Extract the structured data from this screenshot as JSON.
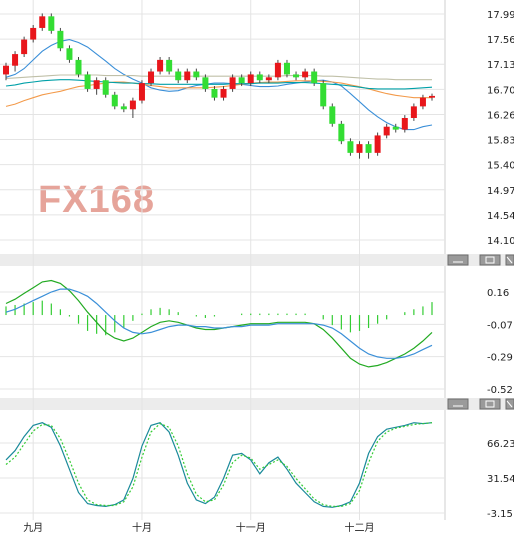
{
  "chart_data": [
    {
      "type": "candlestick",
      "panel": "price",
      "y_ticks": [
        "17.99",
        "17.56",
        "17.13",
        "16.70",
        "16.26",
        "15.83",
        "15.40",
        "14.97",
        "14.54",
        "14.10"
      ],
      "ylim": [
        14.1,
        17.99
      ],
      "up_color": "#e8161b",
      "down_color": "#33dd33",
      "series": [
        {
          "color": "#3a8fd8",
          "values": [
            16.9,
            16.95,
            17.05,
            17.2,
            17.35,
            17.45,
            17.52,
            17.55,
            17.5,
            17.42,
            17.3,
            17.18,
            17.05,
            16.95,
            16.87,
            16.8,
            16.72,
            16.68,
            16.66,
            16.67,
            16.72,
            16.76,
            16.78,
            16.8,
            16.8,
            16.79,
            16.78,
            16.76,
            16.74,
            16.74,
            16.75,
            16.78,
            16.8,
            16.82,
            16.84,
            16.85,
            16.82,
            16.75,
            16.62,
            16.48,
            16.34,
            16.22,
            16.12,
            16.05,
            16.0,
            16.0,
            16.05,
            16.08
          ]
        },
        {
          "color": "#f39a4a",
          "values": [
            16.4,
            16.44,
            16.5,
            16.55,
            16.6,
            16.63,
            16.66,
            16.7,
            16.74,
            16.76,
            16.78,
            16.8,
            16.82,
            16.82,
            16.8,
            16.78,
            16.76,
            16.74,
            16.72,
            16.72,
            16.72,
            16.72,
            16.72,
            16.73,
            16.74,
            16.76,
            16.78,
            16.8,
            16.81,
            16.82,
            16.82,
            16.83,
            16.84,
            16.84,
            16.84,
            16.83,
            16.82,
            16.8,
            16.77,
            16.74,
            16.7,
            16.66,
            16.62,
            16.59,
            16.57,
            16.55,
            16.55,
            16.55
          ]
        },
        {
          "color": "#00a0a8",
          "values": [
            16.75,
            16.77,
            16.8,
            16.82,
            16.84,
            16.85,
            16.86,
            16.86,
            16.85,
            16.84,
            16.83,
            16.82,
            16.81,
            16.8,
            16.8,
            16.79,
            16.79,
            16.78,
            16.78,
            16.78,
            16.78,
            16.78,
            16.78,
            16.78,
            16.78,
            16.79,
            16.79,
            16.79,
            16.8,
            16.8,
            16.8,
            16.81,
            16.81,
            16.81,
            16.8,
            16.79,
            16.78,
            16.77,
            16.75,
            16.73,
            16.71,
            16.7,
            16.7,
            16.7,
            16.7,
            16.71,
            16.72,
            16.73
          ]
        },
        {
          "color": "#c0c0a8",
          "values": [
            16.88,
            16.89,
            16.9,
            16.91,
            16.92,
            16.93,
            16.94,
            16.94,
            16.94,
            16.94,
            16.94,
            16.93,
            16.93,
            16.93,
            16.93,
            16.92,
            16.92,
            16.92,
            16.92,
            16.92,
            16.92,
            16.92,
            16.92,
            16.92,
            16.92,
            16.92,
            16.92,
            16.92,
            16.92,
            16.92,
            16.92,
            16.93,
            16.93,
            16.93,
            16.93,
            16.92,
            16.92,
            16.91,
            16.9,
            16.89,
            16.88,
            16.87,
            16.87,
            16.86,
            16.86,
            16.86,
            16.86,
            16.86
          ]
        }
      ],
      "candles": [
        [
          16.95,
          17.1,
          16.85,
          17.15
        ],
        [
          17.1,
          17.3,
          17.0,
          17.35
        ],
        [
          17.3,
          17.55,
          17.25,
          17.6
        ],
        [
          17.55,
          17.75,
          17.5,
          17.8
        ],
        [
          17.75,
          17.95,
          17.7,
          18.0
        ],
        [
          17.95,
          17.7,
          17.65,
          18.0
        ],
        [
          17.7,
          17.4,
          17.35,
          17.75
        ],
        [
          17.4,
          17.2,
          17.15,
          17.45
        ],
        [
          17.2,
          16.95,
          16.9,
          17.25
        ],
        [
          16.95,
          16.7,
          16.65,
          17.0
        ],
        [
          16.7,
          16.85,
          16.6,
          16.9
        ],
        [
          16.85,
          16.6,
          16.55,
          16.9
        ],
        [
          16.6,
          16.4,
          16.35,
          16.65
        ],
        [
          16.4,
          16.35,
          16.3,
          16.45
        ],
        [
          16.35,
          16.5,
          16.2,
          16.55
        ],
        [
          16.5,
          16.8,
          16.45,
          16.85
        ],
        [
          16.8,
          17.0,
          16.75,
          17.05
        ],
        [
          17.0,
          17.2,
          16.95,
          17.25
        ],
        [
          17.2,
          17.0,
          16.95,
          17.25
        ],
        [
          17.0,
          16.85,
          16.8,
          17.05
        ],
        [
          16.85,
          17.0,
          16.8,
          17.05
        ],
        [
          17.0,
          16.9,
          16.85,
          17.05
        ],
        [
          16.9,
          16.7,
          16.65,
          16.95
        ],
        [
          16.7,
          16.55,
          16.5,
          16.75
        ],
        [
          16.55,
          16.7,
          16.5,
          16.75
        ],
        [
          16.7,
          16.9,
          16.65,
          16.95
        ],
        [
          16.9,
          16.8,
          16.75,
          16.95
        ],
        [
          16.8,
          16.95,
          16.75,
          17.0
        ],
        [
          16.95,
          16.85,
          16.8,
          17.0
        ],
        [
          16.85,
          16.9,
          16.8,
          16.95
        ],
        [
          16.9,
          17.15,
          16.85,
          17.2
        ],
        [
          17.15,
          16.95,
          16.9,
          17.2
        ],
        [
          16.95,
          16.9,
          16.85,
          17.0
        ],
        [
          16.9,
          17.0,
          16.85,
          17.05
        ],
        [
          17.0,
          16.8,
          16.75,
          17.05
        ],
        [
          16.8,
          16.4,
          16.35,
          16.85
        ],
        [
          16.4,
          16.1,
          16.05,
          16.45
        ],
        [
          16.1,
          15.8,
          15.75,
          16.15
        ],
        [
          15.8,
          15.6,
          15.55,
          15.85
        ],
        [
          15.6,
          15.75,
          15.5,
          15.8
        ],
        [
          15.75,
          15.6,
          15.5,
          15.8
        ],
        [
          15.6,
          15.9,
          15.55,
          15.95
        ],
        [
          15.9,
          16.05,
          15.85,
          16.1
        ],
        [
          16.05,
          16.0,
          15.95,
          16.1
        ],
        [
          16.0,
          16.2,
          15.95,
          16.25
        ],
        [
          16.2,
          16.4,
          16.15,
          16.45
        ],
        [
          16.4,
          16.55,
          16.35,
          16.6
        ],
        [
          16.55,
          16.58,
          16.5,
          16.62
        ]
      ]
    },
    {
      "type": "line",
      "panel": "macd",
      "y_ticks": [
        "0.16",
        "-0.07",
        "-0.29",
        "-0.52"
      ],
      "ylim": [
        -0.52,
        0.16
      ],
      "bar_color": "#33cc33",
      "series": [
        {
          "color": "#22aa22",
          "values": [
            0.08,
            0.11,
            0.15,
            0.19,
            0.23,
            0.24,
            0.22,
            0.17,
            0.1,
            0.02,
            -0.05,
            -0.12,
            -0.16,
            -0.18,
            -0.16,
            -0.12,
            -0.08,
            -0.05,
            -0.04,
            -0.05,
            -0.07,
            -0.09,
            -0.1,
            -0.1,
            -0.09,
            -0.08,
            -0.07,
            -0.06,
            -0.06,
            -0.06,
            -0.05,
            -0.05,
            -0.05,
            -0.05,
            -0.06,
            -0.1,
            -0.16,
            -0.23,
            -0.3,
            -0.34,
            -0.36,
            -0.35,
            -0.33,
            -0.3,
            -0.27,
            -0.23,
            -0.18,
            -0.12
          ]
        },
        {
          "color": "#3a8fd8",
          "values": [
            0.02,
            0.04,
            0.07,
            0.1,
            0.13,
            0.16,
            0.18,
            0.18,
            0.16,
            0.13,
            0.08,
            0.02,
            -0.04,
            -0.09,
            -0.12,
            -0.13,
            -0.12,
            -0.1,
            -0.08,
            -0.07,
            -0.07,
            -0.08,
            -0.08,
            -0.09,
            -0.09,
            -0.08,
            -0.08,
            -0.07,
            -0.07,
            -0.07,
            -0.06,
            -0.06,
            -0.06,
            -0.06,
            -0.06,
            -0.07,
            -0.09,
            -0.13,
            -0.18,
            -0.23,
            -0.27,
            -0.29,
            -0.3,
            -0.3,
            -0.29,
            -0.27,
            -0.24,
            -0.21
          ]
        }
      ],
      "histogram": [
        0.06,
        0.07,
        0.08,
        0.09,
        0.1,
        0.08,
        0.04,
        -0.01,
        -0.06,
        -0.11,
        -0.13,
        -0.14,
        -0.12,
        -0.09,
        -0.04,
        0.01,
        0.04,
        0.05,
        0.04,
        0.02,
        0.0,
        -0.01,
        -0.02,
        -0.01,
        0.0,
        0.0,
        0.01,
        0.01,
        0.01,
        0.01,
        0.01,
        0.01,
        0.01,
        0.01,
        0.0,
        -0.03,
        -0.07,
        -0.1,
        -0.12,
        -0.11,
        -0.09,
        -0.06,
        -0.03,
        0.0,
        0.02,
        0.04,
        0.06,
        0.09
      ]
    },
    {
      "type": "line",
      "panel": "stochastic",
      "y_ticks": [
        "66.23",
        "31.54",
        "-3.15"
      ],
      "ylim": [
        -3.15,
        100
      ],
      "series": [
        {
          "color": "#1a8a9a",
          "values": [
            55,
            65,
            80,
            92,
            95,
            90,
            70,
            45,
            20,
            8,
            6,
            5,
            7,
            12,
            35,
            70,
            92,
            95,
            85,
            60,
            30,
            12,
            8,
            15,
            35,
            60,
            62,
            55,
            40,
            52,
            58,
            45,
            30,
            20,
            10,
            5,
            4,
            6,
            10,
            30,
            62,
            80,
            88,
            90,
            92,
            95,
            94,
            95
          ]
        },
        {
          "color": "#33cc33",
          "dashed": true,
          "values": [
            50,
            58,
            72,
            86,
            93,
            92,
            78,
            55,
            30,
            12,
            7,
            6,
            6,
            10,
            26,
            58,
            85,
            94,
            90,
            70,
            40,
            18,
            10,
            12,
            28,
            52,
            60,
            57,
            45,
            50,
            55,
            48,
            35,
            24,
            13,
            7,
            5,
            5,
            8,
            22,
            52,
            75,
            85,
            89,
            91,
            93,
            94,
            95
          ]
        }
      ]
    }
  ],
  "x_axis_labels": [
    "九月",
    "十月",
    "十一月",
    "十二月"
  ],
  "watermark": "FX168"
}
